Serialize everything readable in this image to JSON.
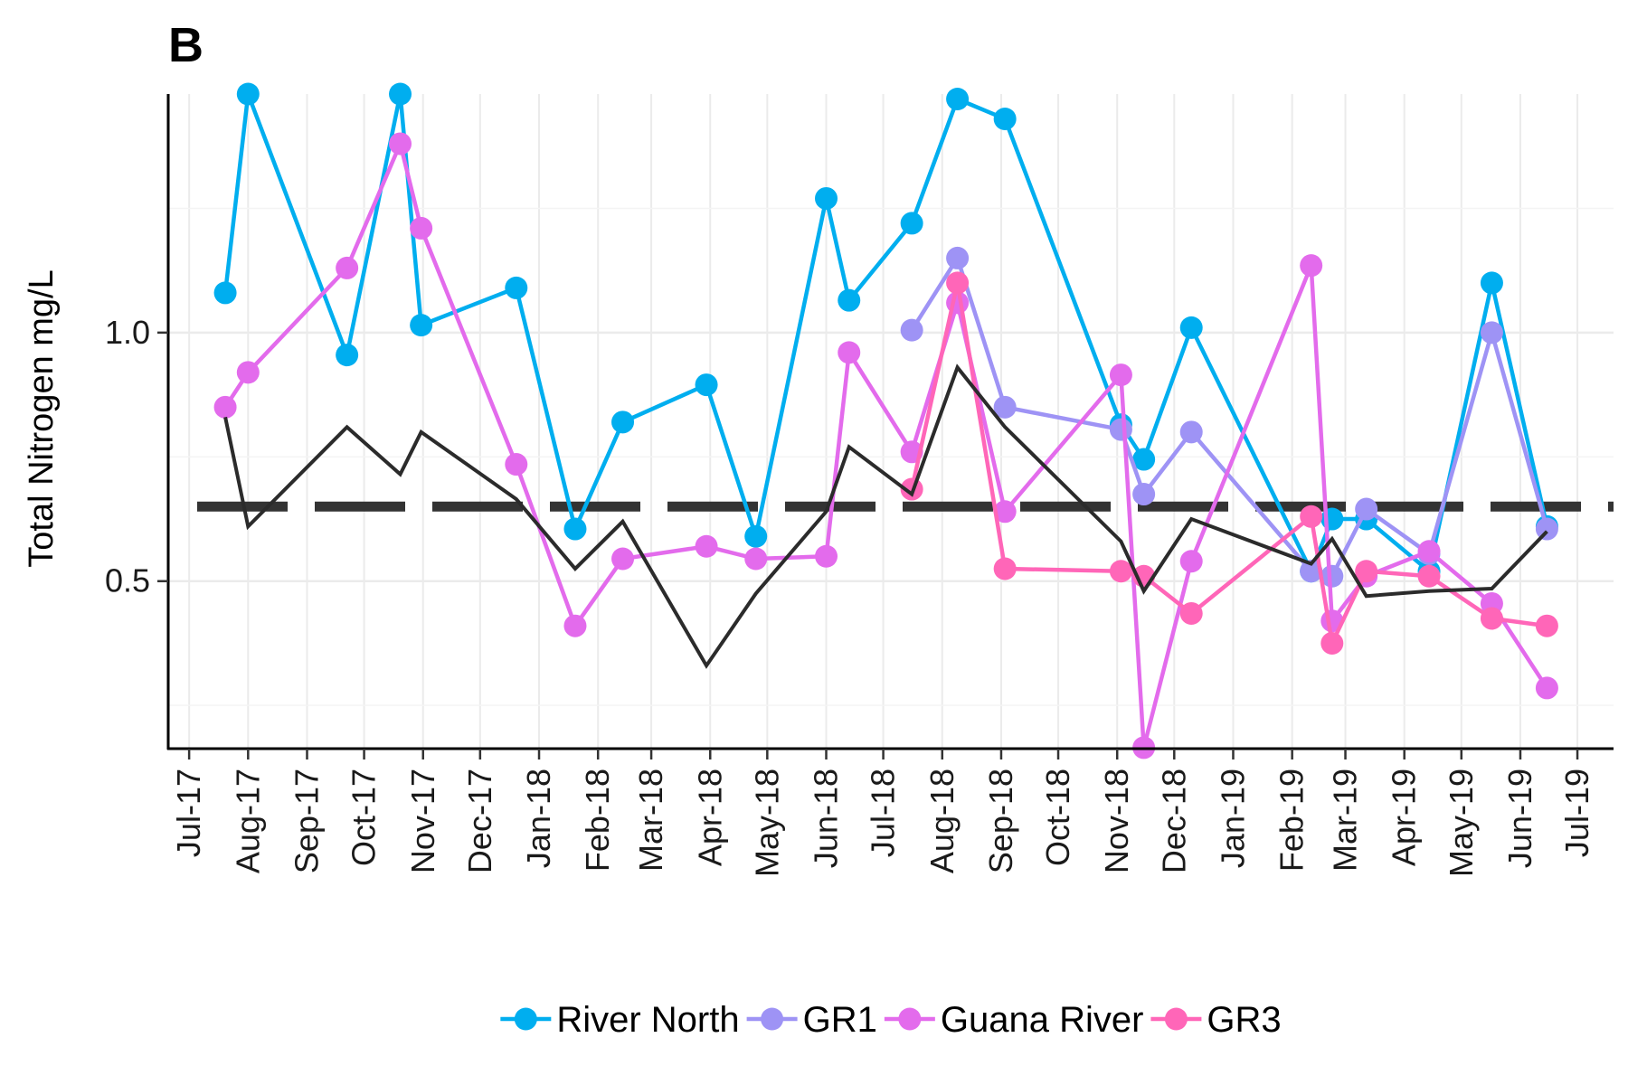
{
  "panel_label": "B",
  "chart_data": {
    "type": "line",
    "title": "",
    "ylabel": "Total Nitrogen mg/L",
    "xlabel": "",
    "ylim": [
      0.163,
      1.48
    ],
    "yticks": [
      0.5,
      1.0
    ],
    "ytick_labels": [
      "0.5",
      "1.0"
    ],
    "xlim": [
      "2017-06-20",
      "2019-07-20"
    ],
    "xticks": [
      "2017-07-01",
      "2017-08-01",
      "2017-09-01",
      "2017-10-01",
      "2017-11-01",
      "2017-12-01",
      "2018-01-01",
      "2018-02-01",
      "2018-03-01",
      "2018-04-01",
      "2018-05-01",
      "2018-06-01",
      "2018-07-01",
      "2018-08-01",
      "2018-09-01",
      "2018-10-01",
      "2018-11-01",
      "2018-12-01",
      "2019-01-01",
      "2019-02-01",
      "2019-03-01",
      "2019-04-01",
      "2019-05-01",
      "2019-06-01",
      "2019-07-01"
    ],
    "xtick_labels": [
      "Jul-17",
      "Aug-17",
      "Sep-17",
      "Oct-17",
      "Nov-17",
      "Dec-17",
      "Jan-18",
      "Feb-18",
      "Mar-18",
      "Apr-18",
      "May-18",
      "Jun-18",
      "Jul-18",
      "Aug-18",
      "Sep-18",
      "Oct-18",
      "Nov-18",
      "Dec-18",
      "Jan-19",
      "Feb-19",
      "Mar-19",
      "Apr-19",
      "May-19",
      "Jun-19",
      "Jul-19"
    ],
    "grid": true,
    "reference_line": {
      "y": 0.65,
      "style": "dashed",
      "color": "#333333"
    },
    "legend_position": "bottom",
    "series": [
      {
        "name": "River North",
        "color": "#00AEEF",
        "markers": true,
        "points": [
          [
            "2017-07-20",
            1.08
          ],
          [
            "2017-08-01",
            1.48
          ],
          [
            "2017-09-22",
            0.955
          ],
          [
            "2017-10-20",
            1.48
          ],
          [
            "2017-10-31",
            1.015
          ],
          [
            "2017-12-20",
            1.09
          ],
          [
            "2018-01-20",
            0.605
          ],
          [
            "2018-02-14",
            0.82
          ],
          [
            "2018-03-30",
            0.895
          ],
          [
            "2018-04-25",
            0.59
          ],
          [
            "2018-06-01",
            1.27
          ],
          [
            "2018-06-13",
            1.065
          ],
          [
            "2018-07-16",
            1.22
          ],
          [
            "2018-08-09",
            1.47
          ],
          [
            "2018-09-03",
            1.43
          ],
          [
            "2018-11-03",
            0.815
          ],
          [
            "2018-11-15",
            0.745
          ],
          [
            "2018-12-10",
            1.01
          ],
          [
            "2019-02-11",
            0.52
          ],
          [
            "2019-02-22",
            0.625
          ],
          [
            "2019-03-12",
            0.625
          ],
          [
            "2019-04-14",
            0.52
          ],
          [
            "2019-05-17",
            1.1
          ],
          [
            "2019-06-15",
            0.61
          ]
        ]
      },
      {
        "name": "GR1",
        "color": "#9E93F5",
        "markers": true,
        "points": [
          [
            "2018-07-16",
            1.005
          ],
          [
            "2018-08-09",
            1.15
          ],
          [
            "2018-09-03",
            0.85
          ],
          [
            "2018-11-03",
            0.805
          ],
          [
            "2018-11-15",
            0.675
          ],
          [
            "2018-12-10",
            0.8
          ],
          [
            "2019-02-11",
            0.52
          ],
          [
            "2019-02-22",
            0.51
          ],
          [
            "2019-03-12",
            0.645
          ],
          [
            "2019-04-14",
            0.555
          ],
          [
            "2019-05-17",
            1.0
          ],
          [
            "2019-06-15",
            0.605
          ]
        ]
      },
      {
        "name": "Guana River",
        "color": "#E36BEC",
        "markers": true,
        "points": [
          [
            "2017-07-20",
            0.85
          ],
          [
            "2017-08-01",
            0.92
          ],
          [
            "2017-09-22",
            1.13
          ],
          [
            "2017-10-20",
            1.38
          ],
          [
            "2017-10-31",
            1.21
          ],
          [
            "2017-12-20",
            0.735
          ],
          [
            "2018-01-20",
            0.41
          ],
          [
            "2018-02-14",
            0.545
          ],
          [
            "2018-03-30",
            0.57
          ],
          [
            "2018-04-25",
            0.545
          ],
          [
            "2018-06-01",
            0.55
          ],
          [
            "2018-06-13",
            0.96
          ],
          [
            "2018-07-16",
            0.76
          ],
          [
            "2018-08-09",
            1.06
          ],
          [
            "2018-09-03",
            0.64
          ],
          [
            "2018-11-03",
            0.915
          ],
          [
            "2018-11-15",
            0.165
          ],
          [
            "2018-12-10",
            0.54
          ],
          [
            "2019-02-11",
            1.135
          ],
          [
            "2019-02-22",
            0.42
          ],
          [
            "2019-03-12",
            0.51
          ],
          [
            "2019-04-14",
            0.56
          ],
          [
            "2019-05-17",
            0.455
          ],
          [
            "2019-06-15",
            0.285
          ]
        ]
      },
      {
        "name": "GR3",
        "color": "#FF66B8",
        "markers": true,
        "points": [
          [
            "2018-07-16",
            0.685
          ],
          [
            "2018-08-09",
            1.1
          ],
          [
            "2018-09-03",
            0.525
          ],
          [
            "2018-11-03",
            0.52
          ],
          [
            "2018-11-15",
            0.51
          ],
          [
            "2018-12-10",
            0.435
          ],
          [
            "2019-02-11",
            0.63
          ],
          [
            "2019-02-22",
            0.375
          ],
          [
            "2019-03-12",
            0.52
          ],
          [
            "2019-04-14",
            0.51
          ],
          [
            "2019-05-17",
            0.425
          ],
          [
            "2019-06-15",
            0.41
          ]
        ]
      },
      {
        "name": "",
        "color": "#2b2b2b",
        "markers": false,
        "points": [
          [
            "2017-07-20",
            0.83
          ],
          [
            "2017-08-01",
            0.61
          ],
          [
            "2017-09-22",
            0.81
          ],
          [
            "2017-10-20",
            0.715
          ],
          [
            "2017-10-31",
            0.8
          ],
          [
            "2017-12-20",
            0.665
          ],
          [
            "2018-01-20",
            0.525
          ],
          [
            "2018-02-14",
            0.62
          ],
          [
            "2018-03-30",
            0.33
          ],
          [
            "2018-04-25",
            0.475
          ],
          [
            "2018-06-01",
            0.64
          ],
          [
            "2018-06-13",
            0.77
          ],
          [
            "2018-07-16",
            0.675
          ],
          [
            "2018-08-09",
            0.93
          ],
          [
            "2018-09-03",
            0.81
          ],
          [
            "2018-11-03",
            0.58
          ],
          [
            "2018-11-15",
            0.48
          ],
          [
            "2018-12-10",
            0.625
          ],
          [
            "2019-02-11",
            0.535
          ],
          [
            "2019-02-22",
            0.585
          ],
          [
            "2019-03-12",
            0.47
          ],
          [
            "2019-04-14",
            0.48
          ],
          [
            "2019-05-17",
            0.485
          ],
          [
            "2019-06-15",
            0.6
          ]
        ]
      }
    ]
  }
}
